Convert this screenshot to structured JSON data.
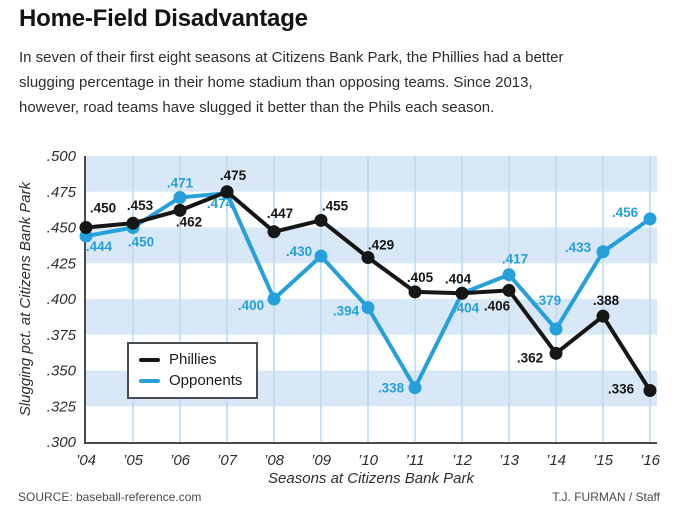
{
  "header": {
    "title": "Home-Field Disadvantage",
    "subtitle": "In seven of their first eight seasons at Citizens Bank Park, the Phillies had a better\nslugging percentage in their home stadium than opposing teams. Since 2013,\nhowever, road teams have slugged it better than the Phils each season."
  },
  "footer": {
    "source": "SOURCE: baseball-reference.com",
    "credit": "T.J. FURMAN / Staff"
  },
  "chart_data": {
    "type": "line",
    "title": "Home-Field Disadvantage",
    "xlabel": "Seasons at Citizens Bank Park",
    "ylabel": "Slugging pct. at Citizens Bank Park",
    "categories": [
      "’04",
      "’05",
      "’06",
      "’07",
      "’08",
      "’09",
      "’10",
      "’11",
      "’12",
      "’13",
      "’14",
      "’15",
      "’16"
    ],
    "y_ticks": [
      ".500",
      ".475",
      ".450",
      ".425",
      ".400",
      ".375",
      ".350",
      ".325",
      ".300"
    ],
    "ylim": [
      0.3,
      0.5
    ],
    "grid": true,
    "legend_position": "inside-lower-left",
    "series": [
      {
        "name": "Phillies",
        "color": "#161616",
        "values": [
          0.45,
          0.453,
          0.462,
          0.475,
          0.447,
          0.455,
          0.429,
          0.405,
          0.404,
          0.406,
          0.362,
          0.388,
          0.336
        ],
        "point_labels": [
          ".450",
          ".453",
          ".462",
          ".475",
          ".447",
          ".455",
          ".429",
          ".405",
          ".404",
          ".406",
          ".362",
          ".388",
          ".336"
        ],
        "label_offsets": [
          [
            17,
            -15
          ],
          [
            7,
            -13
          ],
          [
            9,
            16
          ],
          [
            6,
            -12
          ],
          [
            6,
            -14
          ],
          [
            14,
            -10
          ],
          [
            13,
            -8
          ],
          [
            5,
            -10
          ],
          [
            -4,
            -10
          ],
          [
            -12,
            20
          ],
          [
            -26,
            9
          ],
          [
            3,
            -11
          ],
          [
            -29,
            3
          ]
        ]
      },
      {
        "name": "Opponents",
        "color": "#25a0da",
        "values": [
          0.444,
          0.45,
          0.471,
          0.474,
          0.4,
          0.43,
          0.394,
          0.338,
          0.404,
          0.417,
          0.379,
          0.433,
          0.456
        ],
        "point_labels": [
          ".444",
          ".450",
          ".471",
          ".474",
          ".400",
          ".430",
          ".394",
          ".338",
          ".404",
          ".417",
          ".379",
          ".433",
          ".456"
        ],
        "label_offsets": [
          [
            13,
            15
          ],
          [
            8,
            19
          ],
          [
            0,
            -10
          ],
          [
            -7,
            15
          ],
          [
            -23,
            11
          ],
          [
            -22,
            0
          ],
          [
            -22,
            8
          ],
          [
            -24,
            5
          ],
          [
            4,
            19
          ],
          [
            6,
            -11
          ],
          [
            -8,
            -24
          ],
          [
            -25,
            0
          ],
          [
            -25,
            -2
          ]
        ]
      }
    ],
    "colors": {
      "band": "#d8e8f6",
      "gridline": "#b9d9f0",
      "axis": "#4a4a4a",
      "tick_text": "#2e2e2e"
    }
  }
}
